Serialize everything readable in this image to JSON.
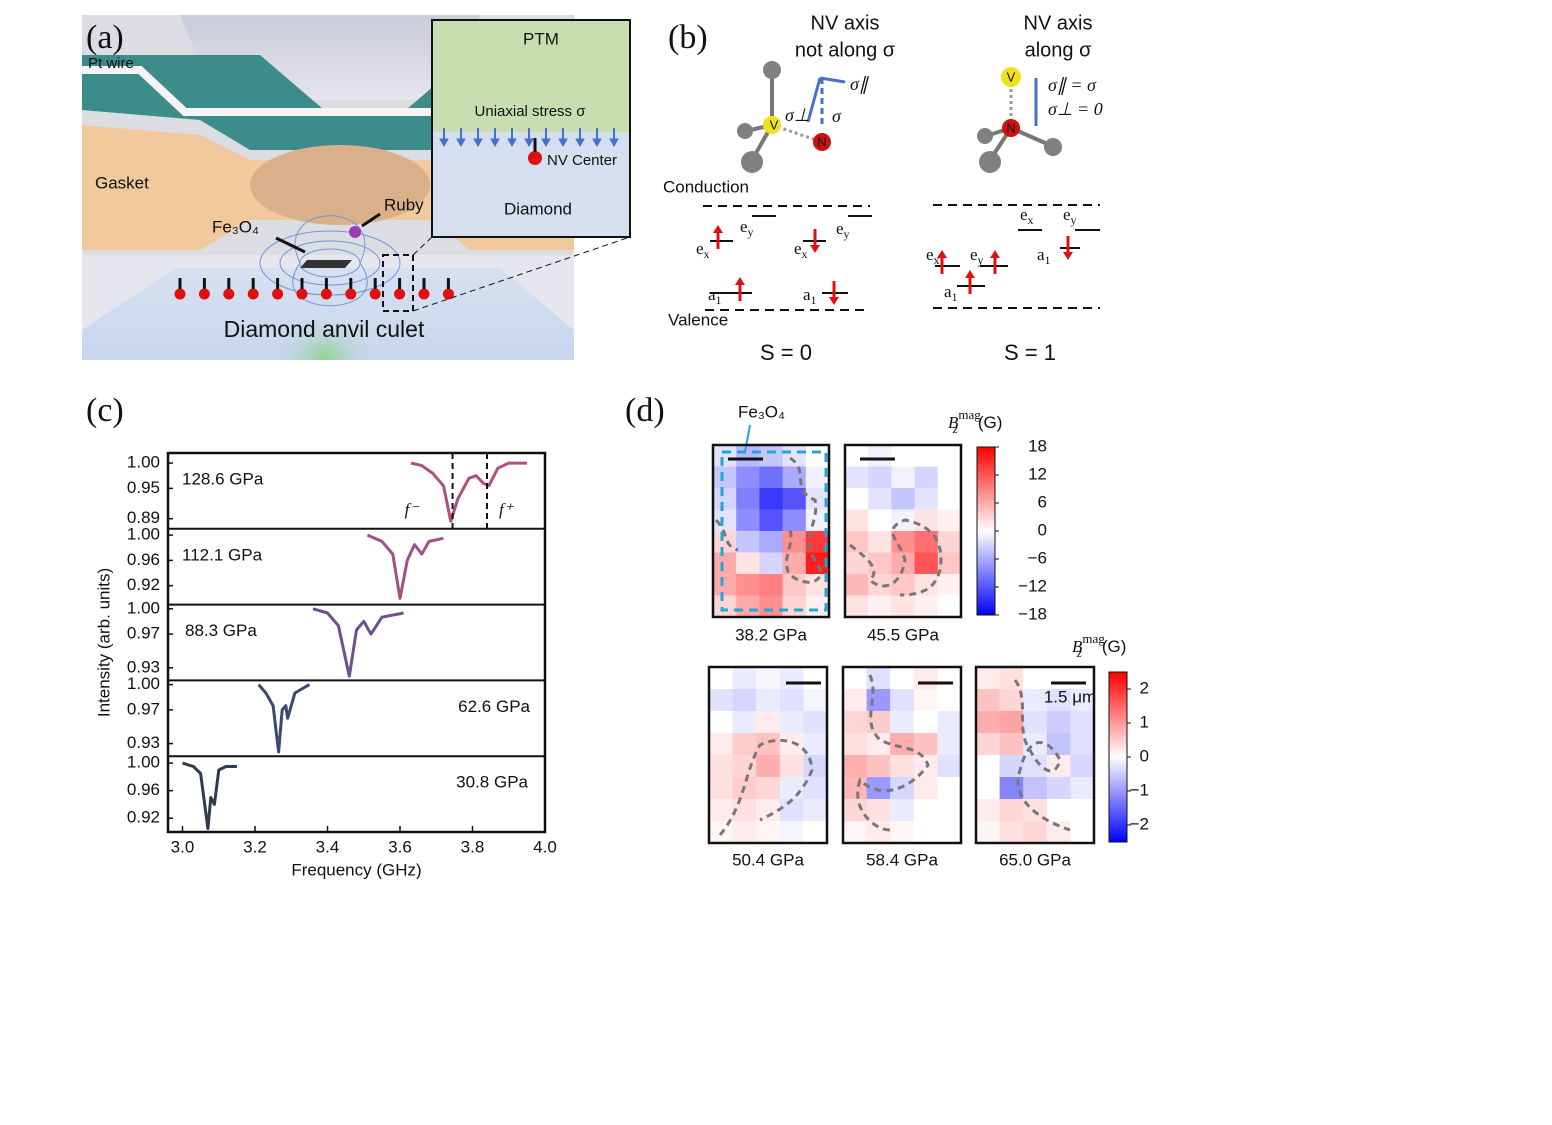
{
  "figure": {
    "a": {
      "label": "(a)",
      "pt_wire": "Pt wire",
      "gasket": "Gasket",
      "sample": "Fe₃O₄",
      "ruby": "Ruby",
      "culet": "Diamond anvil culet",
      "inset": {
        "ptm": "PTM",
        "stress": "Uniaxial stress σ",
        "nv_center": "NV Center",
        "diamond": "Diamond"
      }
    },
    "b": {
      "label": "(b)",
      "left_title": [
        "NV axis",
        "not along σ"
      ],
      "right_title": [
        "NV axis",
        "along σ"
      ],
      "sigma_par": "σ∥",
      "sigma_perp": "σ⊥",
      "sigma": "σ",
      "v": "V",
      "n": "N",
      "eq_par": "σ∥ = σ",
      "eq_perp": "σ⊥ = 0",
      "conduction": "Conduction",
      "valence": "Valence",
      "s0": "S = 0",
      "s1": "S = 1",
      "levels": {
        "ex": {
          "base": "e",
          "sub": "x"
        },
        "ey": {
          "base": "e",
          "sub": "y"
        },
        "a1": {
          "base": "a",
          "sub": "1"
        }
      }
    }
  },
  "chart_data": [
    {
      "type": "line",
      "panel_label": "(c)",
      "xlabel": "Frequency (GHz)",
      "ylabel": "Intensity (arb. units)",
      "xlim": [
        2.96,
        4.0
      ],
      "xticks": [
        {
          "value": 3,
          "label": "3.0"
        },
        {
          "value": 3.2,
          "label": "3.2"
        },
        {
          "value": 3.4,
          "label": "3.4"
        },
        {
          "value": 3.6,
          "label": "3.6"
        },
        {
          "value": 3.8,
          "label": "3.8"
        },
        {
          "value": 4,
          "label": "4.0"
        }
      ],
      "markers": {
        "labels": [
          "f⁻",
          "f⁺"
        ],
        "x": [
          3.745,
          3.84
        ]
      },
      "subplots": [
        {
          "name": "128.6 GPa",
          "color": "#b0507e",
          "ylim": [
            0.87,
            1.02
          ],
          "yticks": [
            {
              "value": 1,
              "label": "1.00"
            },
            0.95,
            0.89
          ],
          "x": [
            3.63,
            3.66,
            3.69,
            3.72,
            3.74,
            3.76,
            3.79,
            3.81,
            3.83,
            3.845,
            3.87,
            3.9,
            3.95
          ],
          "values": [
            1.0,
            0.995,
            0.98,
            0.955,
            0.885,
            0.93,
            0.97,
            0.975,
            0.96,
            0.955,
            0.99,
            1.0,
            1.0
          ]
        },
        {
          "name": "112.1 GPa",
          "color": "#a0508a",
          "ylim": [
            0.89,
            1.01
          ],
          "yticks": [
            {
              "value": 1,
              "label": "1.00"
            },
            0.96,
            0.92
          ],
          "x": [
            3.51,
            3.55,
            3.58,
            3.6,
            3.62,
            3.64,
            3.66,
            3.68,
            3.72
          ],
          "values": [
            1.0,
            0.99,
            0.97,
            0.9,
            0.96,
            0.985,
            0.97,
            0.99,
            0.995
          ]
        },
        {
          "name": "88.3 GPa",
          "color": "#6c5090",
          "ylim": [
            0.915,
            1.005
          ],
          "yticks": [
            {
              "value": 1,
              "label": "1.00"
            },
            0.97,
            0.93
          ],
          "x": [
            3.36,
            3.4,
            3.43,
            3.46,
            3.48,
            3.5,
            3.52,
            3.55,
            3.61
          ],
          "values": [
            1.0,
            0.995,
            0.98,
            0.92,
            0.975,
            0.985,
            0.97,
            0.99,
            0.995
          ]
        },
        {
          "name": "62.6 GPa",
          "color": "#3a4a6e",
          "ylim": [
            0.915,
            1.005
          ],
          "yticks": [
            {
              "value": 1,
              "label": "1.00"
            },
            0.97,
            0.93
          ],
          "x": [
            3.21,
            3.23,
            3.25,
            3.265,
            3.275,
            3.285,
            3.29,
            3.31,
            3.35
          ],
          "values": [
            1.0,
            0.99,
            0.975,
            0.92,
            0.97,
            0.975,
            0.96,
            0.99,
            1.0
          ]
        },
        {
          "name": "30.8 GPa",
          "color": "#2e3c50",
          "ylim": [
            0.9,
            1.01
          ],
          "yticks": [
            {
              "value": 1,
              "label": "1.00"
            },
            0.96,
            0.92
          ],
          "x": [
            3.0,
            3.03,
            3.05,
            3.07,
            3.078,
            3.088,
            3.1,
            3.12,
            3.15
          ],
          "values": [
            1.0,
            0.995,
            0.985,
            0.905,
            0.95,
            0.94,
            0.99,
            0.995,
            0.995
          ]
        }
      ]
    },
    {
      "type": "heatmap",
      "panel_label": "(d)",
      "annotation": "Fe₃O₄",
      "scale_bar": "1.5 μm",
      "colorbar_title": {
        "base": "B",
        "sub": "z",
        "sup": "mag",
        "unit": "(G)"
      },
      "groups": [
        {
          "lim": [
            -18,
            18
          ],
          "ticks": [
            18,
            12,
            6,
            0,
            {
              "value": -6,
              "label": "−6"
            },
            {
              "value": -12,
              "label": "−12"
            },
            {
              "value": -18,
              "label": "−18"
            }
          ],
          "maps": [
            {
              "name": "38.2 GPa",
              "values": [
                [
                  -2,
                  -5,
                  -4,
                  -2,
                  0
                ],
                [
                  -4,
                  -8,
                  -10,
                  -6,
                  -1
                ],
                [
                  -3,
                  -9,
                  -14,
                  -12,
                  -2
                ],
                [
                  -2,
                  -8,
                  -12,
                  -8,
                  -1
                ],
                [
                  3,
                  -4,
                  -6,
                  8,
                  14
                ],
                [
                  6,
                  2,
                  -3,
                  6,
                  16
                ],
                [
                  6,
                  8,
                  9,
                  4,
                  2
                ],
                [
                  3,
                  6,
                  8,
                  3,
                  1
                ]
              ]
            },
            {
              "name": "45.5 GPa",
              "values": [
                [
                  0,
                  -1,
                  0,
                  0,
                  0
                ],
                [
                  -2,
                  -3,
                  -1,
                  -3,
                  0
                ],
                [
                  0,
                  -2,
                  -4,
                  -2,
                  0
                ],
                [
                  2,
                  0,
                  -1,
                  2,
                  1
                ],
                [
                  4,
                  2,
                  8,
                  10,
                  3
                ],
                [
                  3,
                  4,
                  6,
                  12,
                  4
                ],
                [
                  5,
                  3,
                  4,
                  2,
                  1
                ],
                [
                  2,
                  1,
                  2,
                  1,
                  0
                ]
              ]
            }
          ]
        },
        {
          "lim": [
            -2.5,
            2.5
          ],
          "ticks": [
            2,
            1,
            0,
            {
              "value": -1,
              "label": "−1"
            },
            {
              "value": -2,
              "label": "−2"
            }
          ],
          "maps": [
            {
              "name": "50.4 GPa",
              "values": [
                [
                  0,
                  -0.2,
                  -0.1,
                  -0.2,
                  0
                ],
                [
                  -0.3,
                  -0.4,
                  -0.2,
                  -0.3,
                  -0.1
                ],
                [
                  0,
                  -0.2,
                  0.2,
                  -0.2,
                  -0.3
                ],
                [
                  0.2,
                  0.5,
                  0.6,
                  0.2,
                  -0.2
                ],
                [
                  0.3,
                  0.4,
                  0.8,
                  0.3,
                  -0.4
                ],
                [
                  0.3,
                  0.5,
                  0.4,
                  -0.2,
                  -0.3
                ],
                [
                  0.2,
                  0.3,
                  0.2,
                  -0.3,
                  -0.2
                ],
                [
                  0.1,
                  0.2,
                  0.1,
                  -0.1,
                  0
                ]
              ]
            },
            {
              "name": "58.4 GPa",
              "values": [
                [
                  0,
                  -0.3,
                  0,
                  0.2,
                  0
                ],
                [
                  0.2,
                  -1.0,
                  -0.3,
                  0.1,
                  0
                ],
                [
                  0.4,
                  0.5,
                  -0.2,
                  0,
                  -0.2
                ],
                [
                  0.3,
                  0.2,
                  0.8,
                  0.6,
                  -0.2
                ],
                [
                  0.8,
                  0.6,
                  0.3,
                  0.2,
                  -0.3
                ],
                [
                  0.7,
                  -1.0,
                  -0.4,
                  0.2,
                  0
                ],
                [
                  0.4,
                  0.3,
                  -0.2,
                  0,
                  0
                ],
                [
                  0.1,
                  0.2,
                  0.1,
                  0,
                  0
                ]
              ]
            },
            {
              "name": "65.0 GPa",
              "values": [
                [
                  0.2,
                  0.3,
                  0,
                  0,
                  0
                ],
                [
                  0.6,
                  0.4,
                  -0.2,
                  -0.3,
                  -0.2
                ],
                [
                  0.8,
                  0.9,
                  -0.3,
                  -0.5,
                  -0.3
                ],
                [
                  0.4,
                  0.6,
                  -0.2,
                  -0.6,
                  -0.3
                ],
                [
                  0,
                  -0.4,
                  -0.3,
                  0.2,
                  -0.4
                ],
                [
                  0,
                  -1.2,
                  -0.6,
                  -0.4,
                  -0.2
                ],
                [
                  0.2,
                  0.4,
                  0.3,
                  0,
                  0
                ],
                [
                  0.1,
                  0.3,
                  0.4,
                  0.2,
                  0
                ]
              ]
            }
          ]
        }
      ]
    }
  ]
}
